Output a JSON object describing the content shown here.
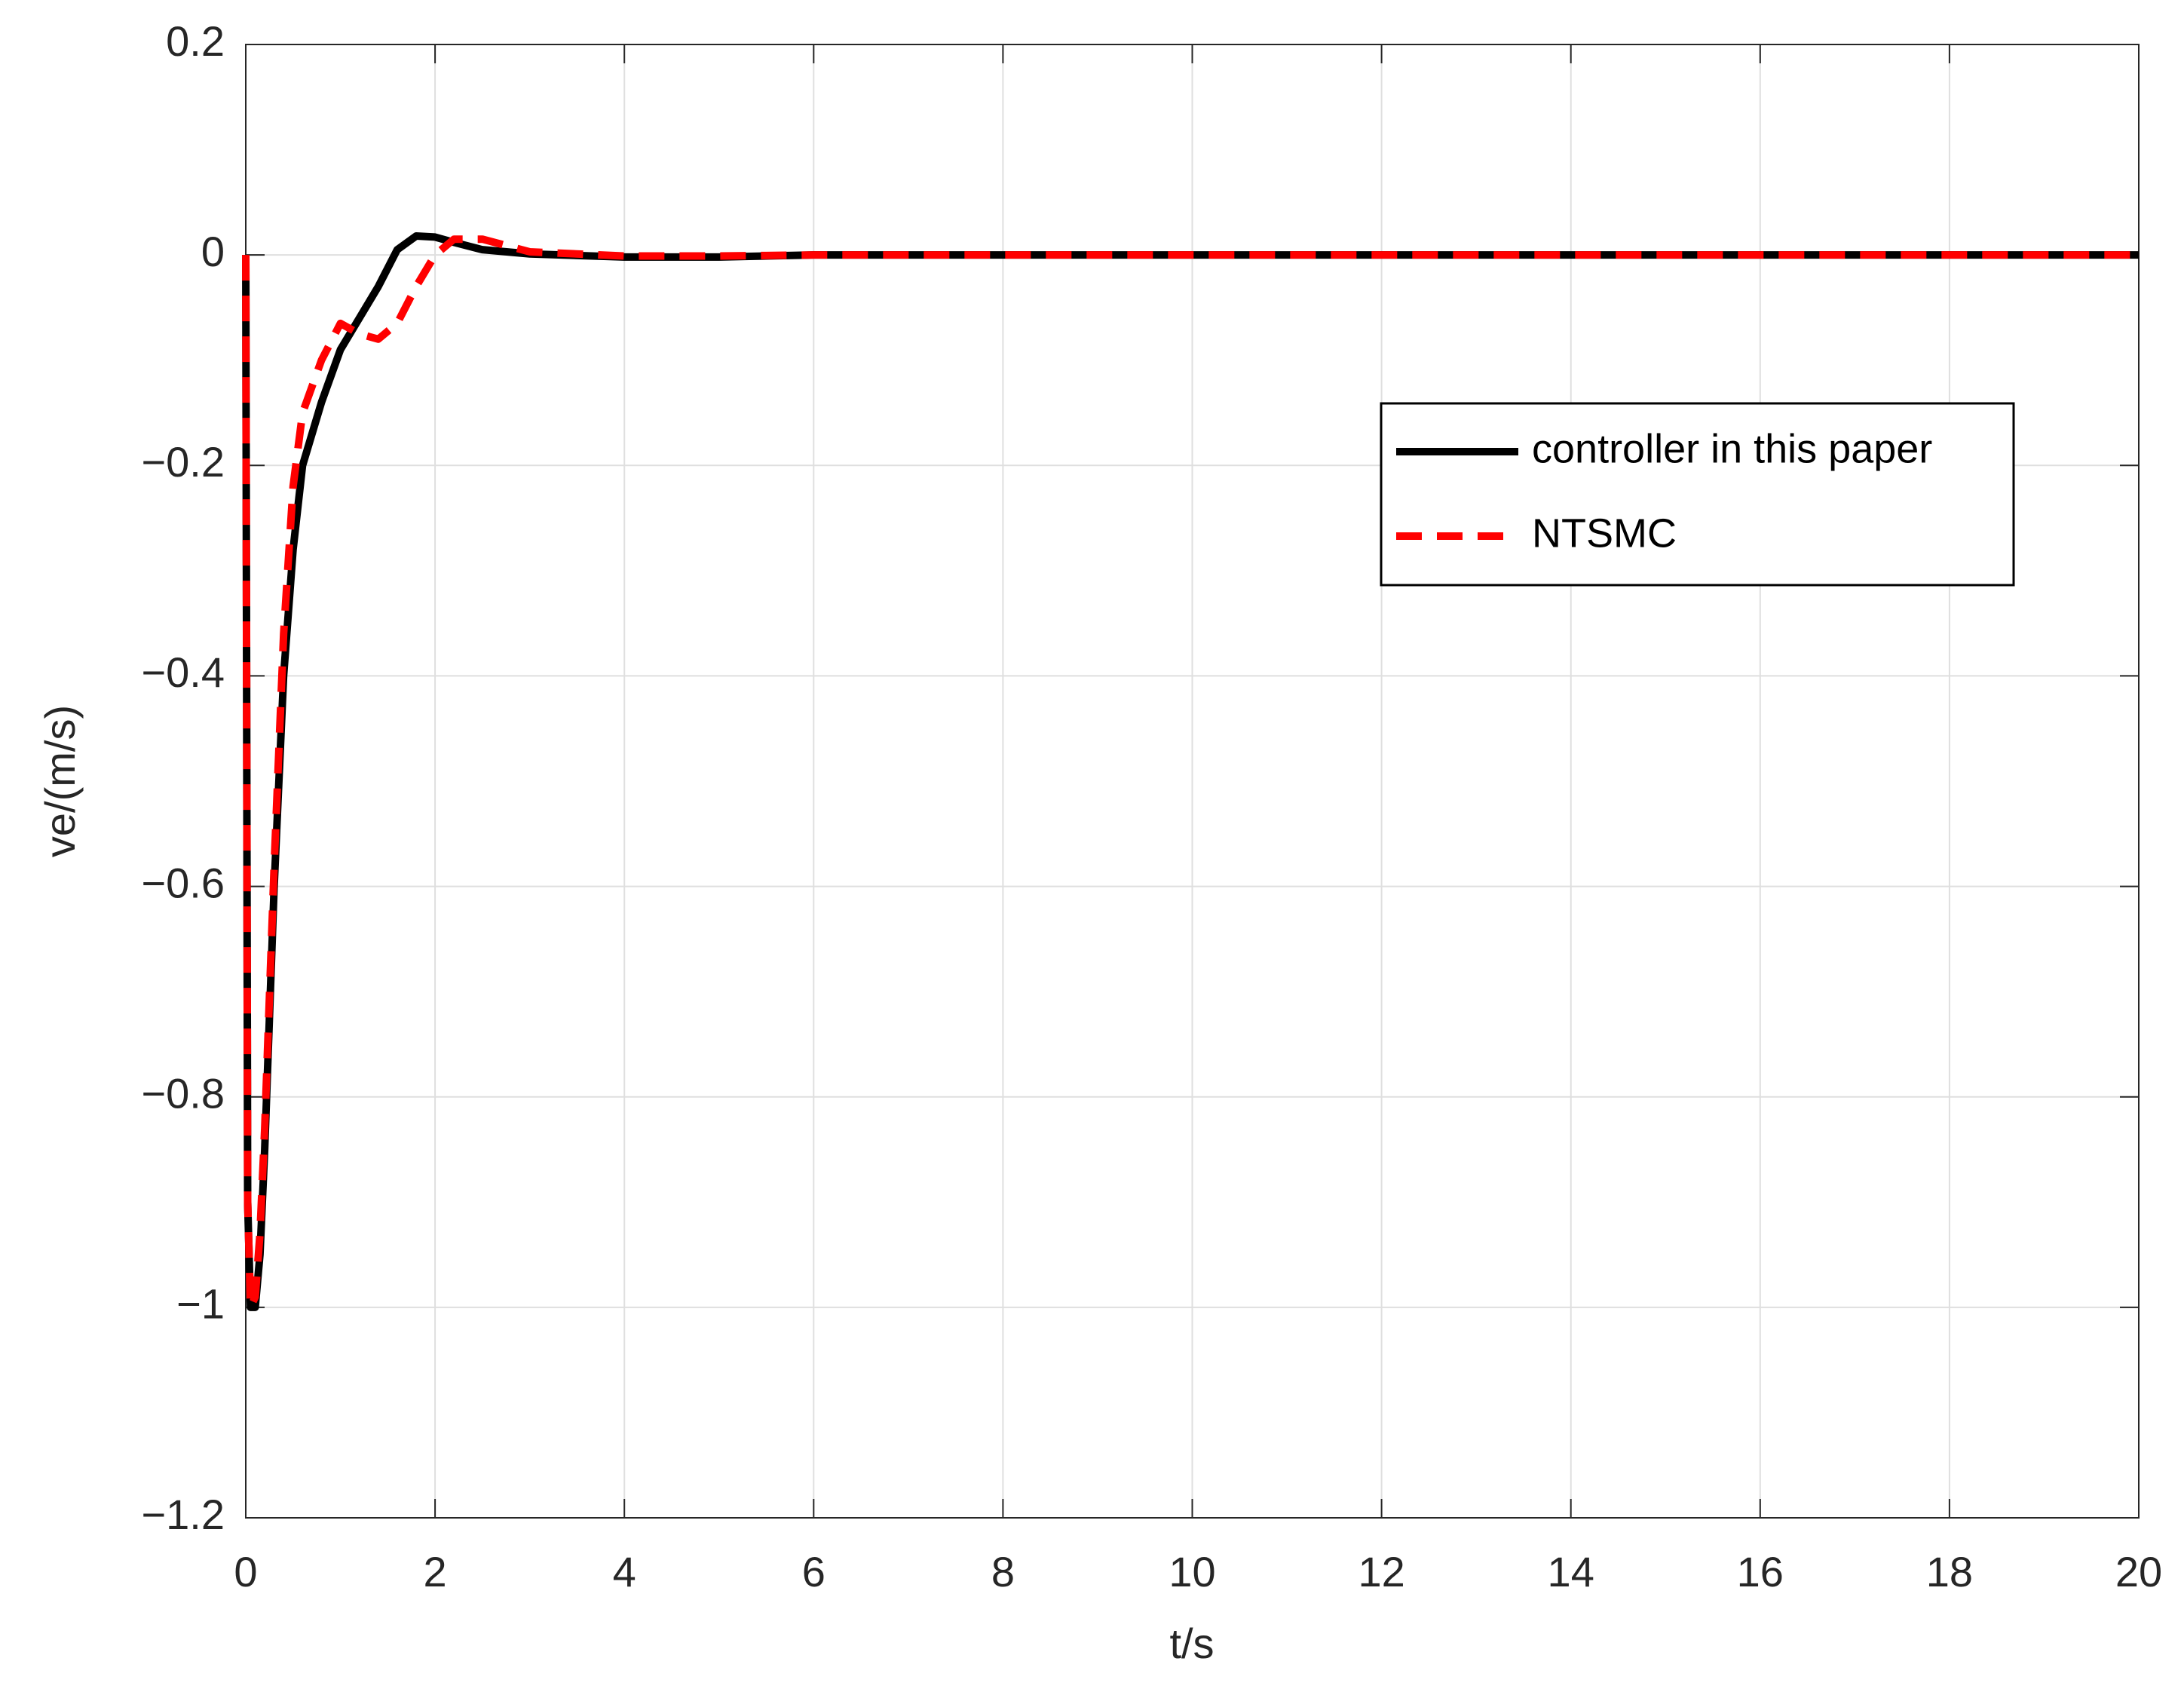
{
  "chart_data": {
    "type": "line",
    "xlabel": "t/s",
    "ylabel": "ve/(m/s)",
    "x": [
      0,
      0.02,
      0.05,
      0.1,
      0.15,
      0.2,
      0.3,
      0.4,
      0.5,
      0.6,
      0.8,
      1.0,
      1.2,
      1.4,
      1.6,
      1.8,
      2.0,
      2.2,
      2.5,
      3,
      4,
      5,
      6,
      8,
      10,
      12,
      14,
      16,
      18,
      20
    ],
    "series": [
      {
        "name": "controller in this paper",
        "color": "#000000",
        "dash": false,
        "values": [
          0,
          -0.9,
          -1.0,
          -1.0,
          -0.95,
          -0.85,
          -0.6,
          -0.4,
          -0.28,
          -0.2,
          -0.14,
          -0.09,
          -0.06,
          -0.03,
          0.005,
          0.018,
          0.017,
          0.012,
          0.005,
          0.001,
          -0.002,
          -0.002,
          0,
          0,
          0,
          0,
          0,
          0,
          0,
          0
        ]
      },
      {
        "name": "NTSMC",
        "color": "#ff0000",
        "dash": true,
        "values": [
          0,
          -0.9,
          -1.0,
          -0.99,
          -0.93,
          -0.83,
          -0.58,
          -0.36,
          -0.22,
          -0.15,
          -0.1,
          -0.065,
          -0.075,
          -0.08,
          -0.065,
          -0.03,
          0.0,
          0.015,
          0.015,
          0.003,
          -0.001,
          -0.001,
          0,
          0,
          0,
          0,
          0,
          0,
          0,
          0
        ]
      }
    ],
    "xlim": [
      0,
      20
    ],
    "xticks": [
      0,
      2,
      4,
      6,
      8,
      10,
      12,
      14,
      16,
      18,
      20
    ],
    "ylim": [
      -1.2,
      0.2
    ],
    "yticks": [
      {
        "value": -1.2,
        "label": "−1.2"
      },
      {
        "value": -1,
        "label": "−1"
      },
      {
        "value": -0.8,
        "label": "−0.8"
      },
      {
        "value": -0.6,
        "label": "−0.6"
      },
      {
        "value": -0.4,
        "label": "−0.4"
      },
      {
        "value": -0.2,
        "label": "−0.2"
      },
      0,
      0.2
    ],
    "grid": true,
    "legend": "right"
  }
}
